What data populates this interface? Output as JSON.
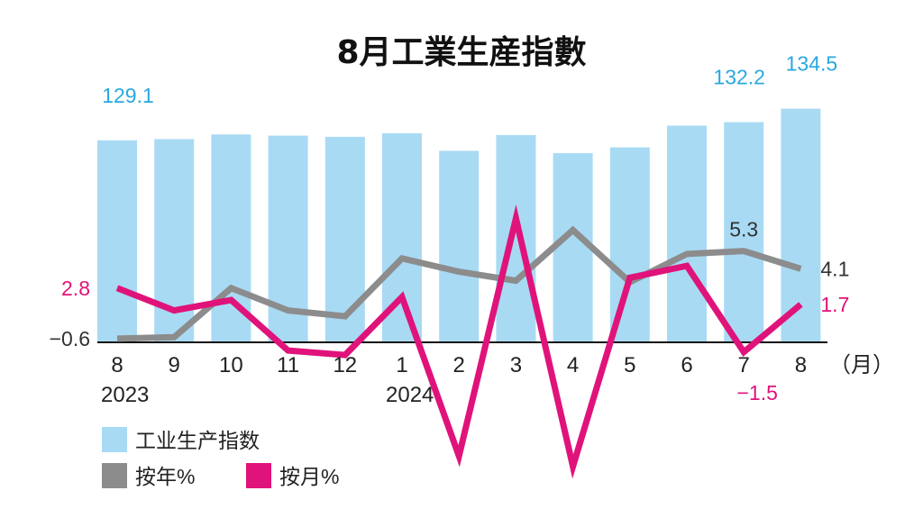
{
  "chart_data": {
    "type": "bar",
    "title": "8月工業生産指數",
    "categories": [
      "8",
      "9",
      "10",
      "11",
      "12",
      "1",
      "2",
      "3",
      "4",
      "5",
      "6",
      "7",
      "8"
    ],
    "year_labels": [
      {
        "index": 0,
        "text": "2023"
      },
      {
        "index": 5,
        "text": "2024"
      }
    ],
    "x_unit": "（月）",
    "series": [
      {
        "name": "工业生产指数",
        "type": "bar",
        "color": "#a8daf4",
        "values": [
          129.1,
          129.3,
          130.1,
          129.9,
          129.7,
          130.3,
          127.3,
          130.0,
          126.9,
          127.9,
          131.6,
          132.2,
          134.5
        ]
      },
      {
        "name": "按年%",
        "type": "line",
        "color": "#8c8c8c",
        "values": [
          -0.6,
          -0.5,
          2.8,
          1.3,
          0.9,
          4.8,
          3.9,
          3.3,
          6.7,
          3.2,
          5.1,
          5.3,
          4.1
        ]
      },
      {
        "name": "按月%",
        "type": "line",
        "color": "#e0137a",
        "values": [
          2.8,
          1.3,
          2.0,
          -1.4,
          -1.7,
          2.2,
          -8.5,
          7.5,
          -9.2,
          3.5,
          4.3,
          -1.5,
          1.7
        ]
      }
    ],
    "data_labels": [
      {
        "series": 0,
        "index": 0,
        "text": "129.1"
      },
      {
        "series": 0,
        "index": 11,
        "text": "132.2"
      },
      {
        "series": 0,
        "index": 12,
        "text": "134.5"
      },
      {
        "series": 1,
        "index": 0,
        "text": "−0.6"
      },
      {
        "series": 1,
        "index": 11,
        "text": "5.3"
      },
      {
        "series": 1,
        "index": 12,
        "text": "4.1"
      },
      {
        "series": 2,
        "index": 0,
        "text": "2.8"
      },
      {
        "series": 2,
        "index": 11,
        "text": "−1.5"
      },
      {
        "series": 2,
        "index": 12,
        "text": "1.7"
      }
    ],
    "legend": {
      "placement": "bottom-left",
      "bar_label": "工业生产指数",
      "line1_label": "按年%",
      "line2_label": "按月%"
    }
  }
}
